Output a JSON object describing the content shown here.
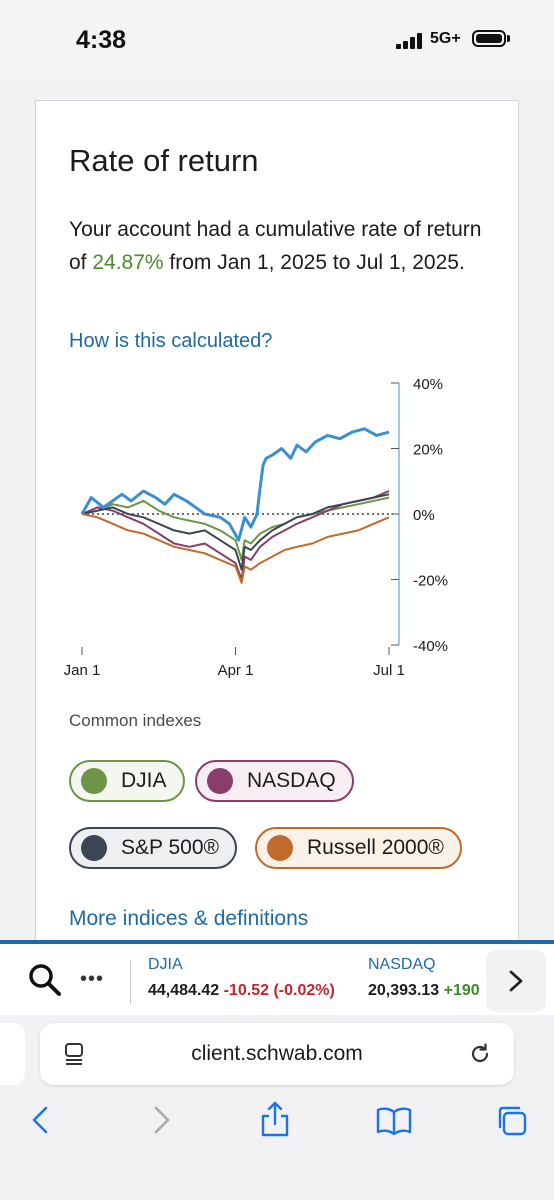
{
  "status_bar": {
    "time": "4:38",
    "network": "5G+"
  },
  "card": {
    "title": "Rate of return",
    "summary_prefix": "Your account had a cumulative rate of return of ",
    "summary_pct": "24.87%",
    "summary_suffix": " from Jan 1, 2025 to Jul 1, 2025.",
    "calc_link": "How is this calculated?",
    "indexes_label": "Common indexes",
    "chips": [
      {
        "label": "DJIA",
        "color": "#6e9447",
        "bg": "#f3f7ef"
      },
      {
        "label": "NASDAQ",
        "color": "#8a3d6b",
        "bg": "#f6eef3"
      },
      {
        "label": "S&P 500®",
        "color": "#3a4652",
        "bg": "#eeeff1"
      },
      {
        "label": "Russell 2000®",
        "color": "#c06a2c",
        "bg": "#fbf1e9"
      }
    ],
    "more_link": "More indices & definitions"
  },
  "chart_data": {
    "type": "line",
    "x_ticks": [
      "Jan 1",
      "Apr 1",
      "Jul 1"
    ],
    "y_ticks": [
      "40%",
      "20%",
      "0%",
      "-20%",
      "-40%"
    ],
    "ylim": [
      -40,
      40
    ],
    "baseline": 0,
    "series": [
      {
        "name": "Account",
        "color": "#3b8fd0",
        "x": [
          0,
          3,
          7,
          10,
          13,
          16,
          20,
          24,
          27,
          30,
          34,
          37,
          40,
          45,
          48,
          51,
          53,
          55,
          57,
          58,
          59,
          60,
          62,
          65,
          68,
          70,
          73,
          76,
          80,
          84,
          88,
          92,
          96,
          100
        ],
        "y": [
          0,
          5,
          2,
          4,
          6,
          4,
          7,
          5,
          3,
          6,
          4,
          2,
          0,
          -1,
          -3,
          -8,
          -1,
          -4,
          0,
          8,
          15,
          17,
          18,
          20,
          17,
          21,
          19,
          22,
          24,
          23,
          25,
          26,
          24,
          25
        ]
      },
      {
        "name": "DJIA",
        "color": "#6e9447",
        "x": [
          0,
          5,
          10,
          15,
          20,
          25,
          30,
          35,
          40,
          45,
          50,
          52,
          53,
          55,
          58,
          62,
          66,
          70,
          75,
          80,
          85,
          90,
          95,
          100
        ],
        "y": [
          0,
          1,
          3,
          2,
          4,
          1,
          -1,
          -2,
          -3,
          -5,
          -8,
          -14,
          -8,
          -9,
          -6,
          -4,
          -3,
          -1,
          0,
          1,
          2,
          3,
          4,
          5
        ]
      },
      {
        "name": "NASDAQ",
        "color": "#8a3d6b",
        "x": [
          0,
          5,
          10,
          15,
          20,
          25,
          30,
          35,
          40,
          45,
          50,
          52,
          53,
          55,
          58,
          62,
          66,
          70,
          75,
          80,
          85,
          90,
          95,
          100
        ],
        "y": [
          0,
          2,
          1,
          -1,
          -3,
          -6,
          -9,
          -10,
          -9,
          -12,
          -15,
          -20,
          -13,
          -14,
          -10,
          -7,
          -5,
          -3,
          -1,
          1,
          3,
          4,
          5,
          7
        ]
      },
      {
        "name": "S&P 500®",
        "color": "#3a4652",
        "x": [
          0,
          5,
          10,
          15,
          20,
          25,
          30,
          35,
          40,
          45,
          50,
          52,
          53,
          55,
          58,
          62,
          66,
          70,
          75,
          80,
          85,
          90,
          95,
          100
        ],
        "y": [
          0,
          1,
          2,
          0,
          -1,
          -3,
          -5,
          -6,
          -5,
          -8,
          -11,
          -17,
          -10,
          -11,
          -8,
          -5,
          -3,
          -1,
          0,
          2,
          3,
          4,
          5,
          6
        ]
      },
      {
        "name": "Russell 2000®",
        "color": "#c06a2c",
        "x": [
          0,
          5,
          10,
          15,
          20,
          25,
          30,
          35,
          40,
          45,
          50,
          52,
          53,
          55,
          58,
          62,
          66,
          70,
          75,
          80,
          85,
          90,
          95,
          100
        ],
        "y": [
          0,
          -1,
          -3,
          -5,
          -6,
          -8,
          -10,
          -11,
          -12,
          -14,
          -16,
          -21,
          -16,
          -17,
          -15,
          -13,
          -11,
          -10,
          -9,
          -7,
          -6,
          -5,
          -3,
          -1
        ]
      }
    ]
  },
  "ticker": {
    "items": [
      {
        "name": "DJIA",
        "value": "44,484.42",
        "change": "-10.52 (-0.02%)"
      },
      {
        "name": "NASDAQ",
        "value": "20,393.13",
        "change": "+190"
      }
    ]
  },
  "url": "client.schwab.com"
}
